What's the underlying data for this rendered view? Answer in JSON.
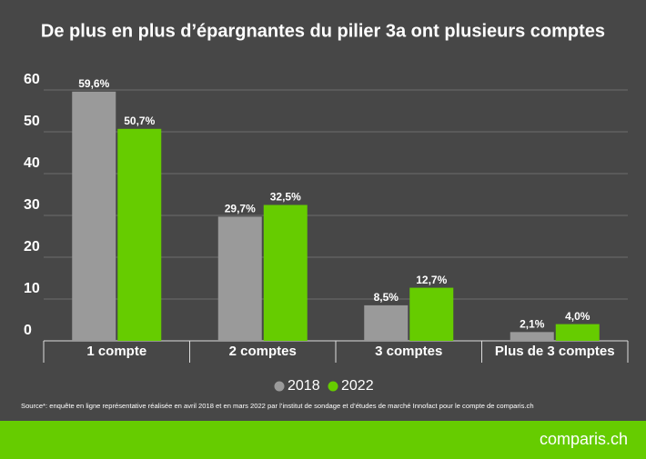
{
  "chart_data": {
    "type": "bar",
    "title": "De plus en plus d’épargnantes du pilier 3a ont plusieurs comptes",
    "categories": [
      "1 compte",
      "2 comptes",
      "3 comptes",
      "Plus de 3 comptes"
    ],
    "series": [
      {
        "name": "2018",
        "color": "#9a9a9a",
        "values": [
          59.6,
          29.7,
          8.5,
          2.1
        ],
        "value_labels": [
          "59,6%",
          "29,7%",
          "8,5%",
          "2,1%"
        ]
      },
      {
        "name": "2022",
        "color": "#66cc00",
        "values": [
          50.7,
          32.5,
          12.7,
          4.0
        ],
        "value_labels": [
          "50,7%",
          "32,5%",
          "12,7%",
          "4,0%"
        ]
      }
    ],
    "ylim": [
      0,
      60
    ],
    "yticks": [
      0,
      10,
      20,
      30,
      40,
      50,
      60
    ],
    "grid": true,
    "source": "Source*: enquête en ligne représentative réalisée en avril 2018 et en mars 2022 par l’institut de sondage et d’études de marché Innofact pour le compte de comparis.ch",
    "logo": "comparis.ch"
  }
}
